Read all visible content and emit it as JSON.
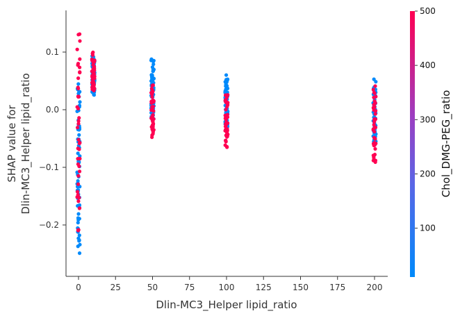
{
  "chart_data": {
    "type": "scatter",
    "title": "",
    "xlabel": "Dlin-MC3_Helper lipid_ratio",
    "ylabel_line1": "SHAP value for",
    "ylabel_line2": "Dlin-MC3_Helper lipid_ratio",
    "xlim": [
      -8,
      210
    ],
    "ylim": [
      -0.29,
      0.175
    ],
    "x_ticks": [
      {
        "value": 0,
        "label": "0"
      },
      {
        "value": 25,
        "label": "25"
      },
      {
        "value": 50,
        "label": "50"
      },
      {
        "value": 75,
        "label": "75"
      },
      {
        "value": 100,
        "label": "100"
      },
      {
        "value": 125,
        "label": "125"
      },
      {
        "value": 150,
        "label": "150"
      },
      {
        "value": 175,
        "label": "175"
      },
      {
        "value": 200,
        "label": "200"
      }
    ],
    "y_ticks": [
      {
        "value": 0.1,
        "label": "0.1"
      },
      {
        "value": 0.0,
        "label": "0.0"
      },
      {
        "value": -0.1,
        "label": "−0.1"
      },
      {
        "value": -0.2,
        "label": "−0.2"
      }
    ],
    "grid": false,
    "colorbar": {
      "label": "Chol_DMG-PEG_ratio",
      "range": [
        10,
        500
      ],
      "ticks": [
        {
          "value": 100,
          "label": "100"
        },
        {
          "value": 200,
          "label": "200"
        },
        {
          "value": 300,
          "label": "300"
        },
        {
          "value": 400,
          "label": "400"
        },
        {
          "value": 500,
          "label": "500"
        }
      ],
      "color_low": "#008afb",
      "color_high": "#ff0052"
    },
    "groups": [
      {
        "x": 0,
        "blue_range": [
          -0.27,
          0.065
        ],
        "pink_range": [
          -0.23,
          0.15
        ]
      },
      {
        "x": 10,
        "blue_range": [
          0.022,
          0.1
        ],
        "pink_range": [
          0.03,
          0.1
        ]
      },
      {
        "x": 50,
        "blue_range": [
          -0.035,
          0.09
        ],
        "pink_range": [
          -0.055,
          0.045
        ]
      },
      {
        "x": 100,
        "blue_range": [
          -0.04,
          0.063
        ],
        "pink_range": [
          -0.07,
          0.03
        ]
      },
      {
        "x": 200,
        "blue_range": [
          -0.07,
          0.058
        ],
        "pink_range": [
          -0.103,
          0.045
        ]
      }
    ]
  }
}
